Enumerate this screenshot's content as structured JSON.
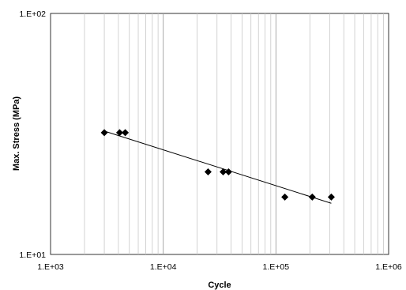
{
  "chart_data": {
    "type": "scatter",
    "title": "",
    "xlabel": "Cycle",
    "ylabel": "Max. Stress (MPa)",
    "x_scale": "log",
    "y_scale": "log",
    "xlim": [
      1000,
      1000000
    ],
    "ylim": [
      10,
      100
    ],
    "x_tick_labels": [
      "1.E+03",
      "1.E+04",
      "1.E+05",
      "1.E+06"
    ],
    "y_tick_labels": [
      "1.E+02",
      "1.E+01"
    ],
    "grid": {
      "x_minor": true,
      "y": false
    },
    "series": [
      {
        "marker": "diamond",
        "color": "#000000",
        "points": [
          {
            "x": 3000,
            "y": 32
          },
          {
            "x": 4100,
            "y": 32
          },
          {
            "x": 4600,
            "y": 32
          },
          {
            "x": 25000,
            "y": 22
          },
          {
            "x": 34000,
            "y": 22
          },
          {
            "x": 38000,
            "y": 22
          },
          {
            "x": 120000,
            "y": 17.3
          },
          {
            "x": 210000,
            "y": 17.3
          },
          {
            "x": 310000,
            "y": 17.3
          }
        ]
      }
    ],
    "trendline": {
      "type": "power",
      "color": "#000000",
      "points": [
        {
          "x": 3000,
          "y": 32.5
        },
        {
          "x": 310000,
          "y": 16.3
        }
      ]
    }
  }
}
